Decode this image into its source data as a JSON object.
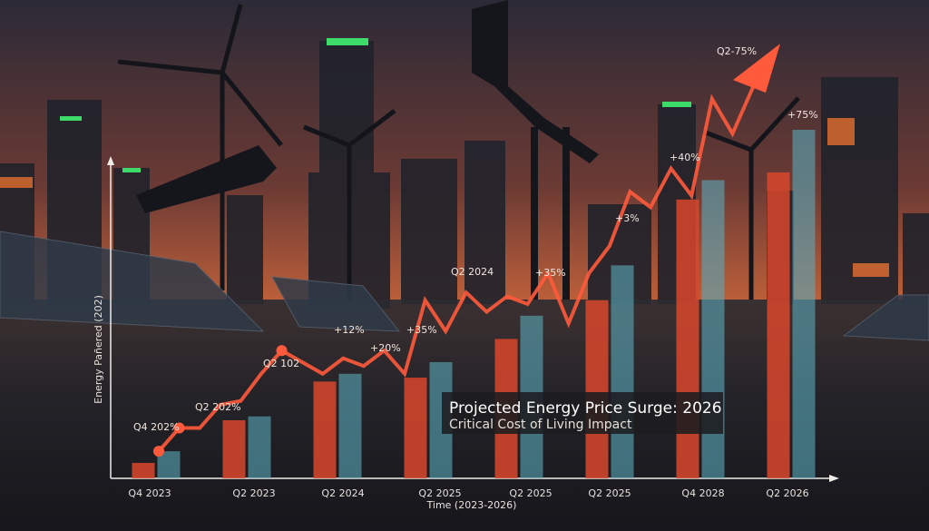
{
  "chart_data": {
    "type": "bar",
    "title": "Projected Energy Price Surge: 2026",
    "subtitle": "Critical Cost of Living Impact",
    "y_label": "Energy Pañered (202)",
    "x_label": "Time (2023-2026)",
    "categories": [
      "Q4 2023",
      "Q2 2023",
      "Q2 2024",
      "Q2 2025",
      "Q2 2025",
      "Q2 2025",
      "Q4 2028",
      "Q2 2026"
    ],
    "series": [
      {
        "color": "#d9472b",
        "values": [
          4,
          15,
          25,
          26,
          36,
          46,
          72,
          79
        ]
      },
      {
        "color": "#5aaabb",
        "values": [
          7,
          16,
          27,
          30,
          42,
          55,
          77,
          90
        ]
      }
    ],
    "line": {
      "type": "line",
      "color": "#ff5a3c",
      "values": [
        7,
        13,
        13,
        19,
        20,
        27,
        33,
        30,
        27,
        31,
        29,
        33,
        27,
        46,
        38,
        48,
        43,
        47,
        45,
        53,
        40,
        53,
        60,
        74,
        70,
        80,
        73,
        98,
        89,
        101
      ],
      "markers": [
        0,
        1,
        6
      ]
    },
    "annotations": [
      "Q4 202%",
      "Q2 202%",
      "Q2 102",
      "+12%",
      "+20%",
      "+35%",
      "Q2 2024",
      "+35%",
      "+3%",
      "+40%",
      "Q2-75%",
      "+75%"
    ],
    "ylim": [
      0,
      105
    ]
  }
}
